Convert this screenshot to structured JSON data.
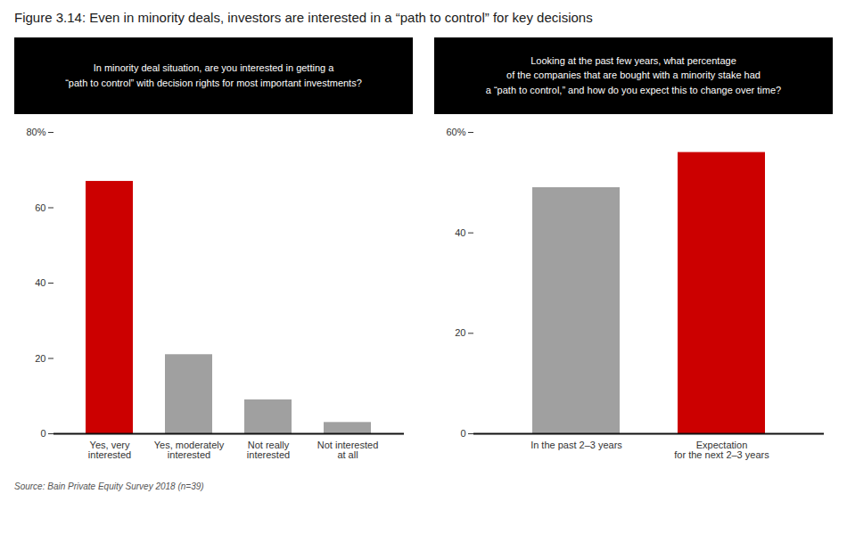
{
  "title": "Figure 3.14: Even in minority deals, investors are interested in a “path to control” for key decisions",
  "annotations": [
    "Source: Bain Private Equity Survey 2018 (n=39)"
  ],
  "chart_data": [
    {
      "type": "bar",
      "title": "In minority deal situation, are you interested in getting a\n“path to control” with decision rights for most important investments?",
      "categories": [
        "Yes, very\ninterested",
        "Yes, moderately\ninterested",
        "Not really\ninterested",
        "Not interested\nat all"
      ],
      "values": [
        67,
        21,
        9,
        3
      ],
      "colors": [
        "#cc0000",
        "#a0a0a0",
        "#a0a0a0",
        "#a0a0a0"
      ],
      "ylim": [
        0,
        80
      ],
      "yticks": [
        0,
        20,
        40,
        60,
        {
          "value": 80,
          "label": "80%"
        }
      ]
    },
    {
      "type": "bar",
      "title": "Looking at the past few years, what percentage\nof the companies that are bought with a minority stake had\na “path to control,” and how do you expect this to change over time?",
      "categories": [
        "In the past 2–3 years",
        "Expectation\nfor the next 2–3 years"
      ],
      "values": [
        49,
        56
      ],
      "colors": [
        "#a0a0a0",
        "#cc0000"
      ],
      "ylim": [
        0,
        60
      ],
      "yticks": [
        0,
        20,
        40,
        {
          "value": 60,
          "label": "60%"
        }
      ]
    }
  ]
}
